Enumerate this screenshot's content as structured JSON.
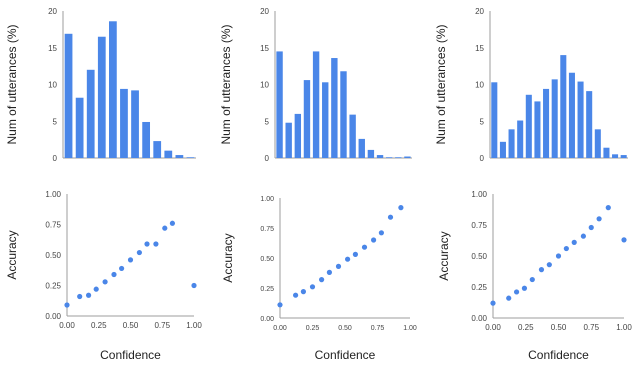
{
  "colors": {
    "series": "#4a86e8",
    "axis": "#9e9e9e",
    "text": "#222222",
    "tick": "#444444"
  },
  "chart_data": [
    {
      "type": "bar",
      "ylabel": "Num of utterances (%)",
      "xlabel": "",
      "ylim": [
        0,
        20
      ],
      "yticks": [
        0,
        5,
        10,
        15,
        20
      ],
      "grid": false,
      "values": [
        16.9,
        8.2,
        12.0,
        16.5,
        18.6,
        9.4,
        9.2,
        4.9,
        2.3,
        1.0,
        0.4,
        0.1
      ]
    },
    {
      "type": "bar",
      "ylabel": "Num of utterances (%)",
      "xlabel": "",
      "ylim": [
        0,
        20
      ],
      "yticks": [
        0,
        5,
        10,
        15,
        20
      ],
      "grid": false,
      "values": [
        14.5,
        4.8,
        6.0,
        10.6,
        14.5,
        10.3,
        13.6,
        11.8,
        5.9,
        2.6,
        1.1,
        0.4,
        0.1,
        0.1,
        0.2
      ]
    },
    {
      "type": "bar",
      "ylabel": "Num of utterances (%)",
      "xlabel": "",
      "ylim": [
        0,
        20
      ],
      "yticks": [
        0,
        5,
        10,
        15,
        20
      ],
      "grid": false,
      "values": [
        10.3,
        2.2,
        3.9,
        5.1,
        8.6,
        7.7,
        9.4,
        10.7,
        14.0,
        11.6,
        10.4,
        9.1,
        3.9,
        1.4,
        0.5,
        0.4
      ]
    },
    {
      "type": "scatter",
      "ylabel": "Accuracy",
      "xlabel": "Confidence",
      "xlim": [
        0,
        1
      ],
      "ylim": [
        0,
        1
      ],
      "xticks": [
        "0.00",
        "0.25",
        "0.50",
        "0.75",
        "1.00"
      ],
      "yticks": [
        "0.00",
        "0.25",
        "0.50",
        "0.75",
        "1.00"
      ],
      "grid": false,
      "points": [
        [
          0.0,
          0.09
        ],
        [
          0.1,
          0.16
        ],
        [
          0.17,
          0.17
        ],
        [
          0.23,
          0.22
        ],
        [
          0.3,
          0.28
        ],
        [
          0.37,
          0.34
        ],
        [
          0.43,
          0.39
        ],
        [
          0.5,
          0.46
        ],
        [
          0.57,
          0.52
        ],
        [
          0.63,
          0.59
        ],
        [
          0.7,
          0.59
        ],
        [
          0.77,
          0.72
        ],
        [
          0.83,
          0.76
        ],
        [
          1.0,
          0.25
        ]
      ]
    },
    {
      "type": "scatter",
      "ylabel": "Accuracy",
      "xlabel": "Confidence",
      "xlim": [
        0,
        1
      ],
      "ylim": [
        0,
        1
      ],
      "xticks": [
        "0.00",
        "0.25",
        "0.50",
        "0.75",
        "1.00"
      ],
      "yticks": [
        "0.00",
        "0.25",
        "0.50",
        "0.75",
        "1.00"
      ],
      "grid": false,
      "points": [
        [
          0.0,
          0.11
        ],
        [
          0.12,
          0.19
        ],
        [
          0.18,
          0.22
        ],
        [
          0.25,
          0.26
        ],
        [
          0.32,
          0.32
        ],
        [
          0.38,
          0.38
        ],
        [
          0.45,
          0.43
        ],
        [
          0.52,
          0.49
        ],
        [
          0.58,
          0.53
        ],
        [
          0.65,
          0.59
        ],
        [
          0.72,
          0.65
        ],
        [
          0.78,
          0.71
        ],
        [
          0.85,
          0.84
        ],
        [
          0.93,
          0.92
        ]
      ]
    },
    {
      "type": "scatter",
      "ylabel": "Accuracy",
      "xlabel": "Confidence",
      "xlim": [
        0,
        1
      ],
      "ylim": [
        0,
        1
      ],
      "xticks": [
        "0.00",
        "0.25",
        "0.50",
        "0.75",
        "1.00"
      ],
      "yticks": [
        "0.00",
        "0.25",
        "0.50",
        "0.75",
        "1.00"
      ],
      "grid": false,
      "points": [
        [
          0.0,
          0.12
        ],
        [
          0.12,
          0.16
        ],
        [
          0.18,
          0.21
        ],
        [
          0.24,
          0.24
        ],
        [
          0.3,
          0.31
        ],
        [
          0.37,
          0.39
        ],
        [
          0.43,
          0.43
        ],
        [
          0.5,
          0.5
        ],
        [
          0.56,
          0.56
        ],
        [
          0.62,
          0.61
        ],
        [
          0.69,
          0.66
        ],
        [
          0.75,
          0.73
        ],
        [
          0.81,
          0.8
        ],
        [
          0.88,
          0.89
        ],
        [
          1.0,
          0.63
        ]
      ]
    }
  ]
}
